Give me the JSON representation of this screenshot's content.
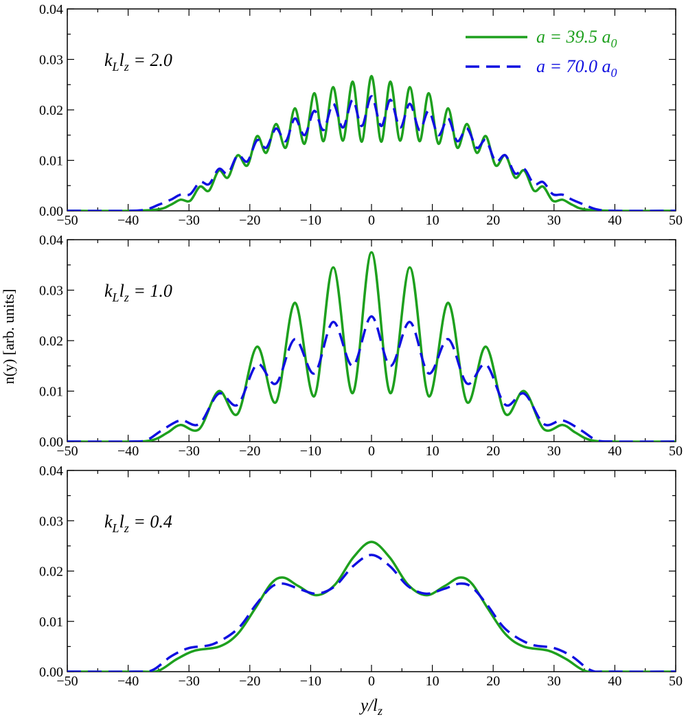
{
  "chart_data": {
    "type": "line",
    "ylabel": "n(y) [arb. units]",
    "xlabel": {
      "main": "y/l",
      "sub": "z"
    },
    "xlim": [
      -50,
      50
    ],
    "ylim": [
      0.0,
      0.04
    ],
    "xticks": [
      -50,
      -40,
      -30,
      -20,
      -10,
      0,
      10,
      20,
      30,
      40,
      50
    ],
    "xtick_labels": [
      "−50",
      "−40",
      "−30",
      "−20",
      "−10",
      "0",
      "10",
      "20",
      "30",
      "40",
      "50"
    ],
    "yticks": [
      0.0,
      0.01,
      0.02,
      0.03,
      0.04
    ],
    "ytick_labels": [
      "0.00",
      "0.01",
      "0.02",
      "0.03",
      "0.04"
    ],
    "legend": {
      "location": "top-right",
      "entries": [
        {
          "name": "a = 39.5 a",
          "sub": "0",
          "color": "#1ea01e",
          "style": "solid"
        },
        {
          "name": "a = 70.0 a",
          "sub": "0",
          "color": "#1010e0",
          "style": "dashed"
        }
      ]
    },
    "panels": [
      {
        "label": {
          "k": "k",
          "ksub": "L",
          "l": "l",
          "lsub": "z",
          "value": " = 2.0"
        },
        "series": [
          {
            "name": "a = 39.5 a0",
            "color": "#1ea01e",
            "style": "solid",
            "x": [
              -50,
              -40,
              -35,
              -33.0,
              -31.4,
              -29.8,
              -28.2,
              -26.7,
              -25.1,
              -23.6,
              -22.0,
              -20.4,
              -18.8,
              -17.3,
              -15.7,
              -14.1,
              -12.6,
              -11.0,
              -9.4,
              -7.9,
              -6.3,
              -4.7,
              -3.1,
              -1.6,
              0,
              1.6,
              3.1,
              4.7,
              6.3,
              7.9,
              9.4,
              11.0,
              12.6,
              14.1,
              15.7,
              17.3,
              18.8,
              20.4,
              22.0,
              23.6,
              25.1,
              26.7,
              28.2,
              29.8,
              31.4,
              33.0,
              35,
              40,
              50
            ],
            "y": [
              0,
              0,
              0.0003,
              0.0012,
              0.0022,
              0.002,
              0.0048,
              0.004,
              0.008,
              0.0066,
              0.011,
              0.009,
              0.0148,
              0.0115,
              0.0172,
              0.0125,
              0.0203,
              0.0133,
              0.0233,
              0.0138,
              0.0245,
              0.0139,
              0.0256,
              0.0137,
              0.0267,
              0.0137,
              0.0256,
              0.0139,
              0.0245,
              0.0138,
              0.0233,
              0.0133,
              0.0203,
              0.0125,
              0.0172,
              0.0115,
              0.0148,
              0.009,
              0.011,
              0.0066,
              0.008,
              0.004,
              0.0048,
              0.002,
              0.0022,
              0.0012,
              0.0003,
              0,
              0
            ]
          },
          {
            "name": "a = 70.0 a0",
            "color": "#1010e0",
            "style": "dashed",
            "x": [
              -50,
              -40,
              -37,
              -35,
              -33.0,
              -31.4,
              -29.8,
              -28.2,
              -26.7,
              -25.1,
              -23.6,
              -22.0,
              -20.4,
              -18.8,
              -17.3,
              -15.7,
              -14.1,
              -12.6,
              -11.0,
              -9.4,
              -7.9,
              -6.3,
              -4.7,
              -3.1,
              -1.6,
              0,
              1.6,
              3.1,
              4.7,
              6.3,
              7.9,
              9.4,
              11.0,
              12.6,
              14.1,
              15.7,
              17.3,
              18.8,
              20.4,
              22.0,
              23.6,
              25.1,
              26.7,
              28.2,
              29.8,
              31.4,
              33.0,
              35,
              37,
              40,
              50
            ],
            "y": [
              0,
              0,
              0.0003,
              0.0012,
              0.0022,
              0.0032,
              0.0033,
              0.0057,
              0.0053,
              0.0083,
              0.0074,
              0.011,
              0.0098,
              0.014,
              0.0125,
              0.0163,
              0.0138,
              0.0183,
              0.015,
              0.0198,
              0.016,
              0.0212,
              0.0165,
              0.022,
              0.0168,
              0.0227,
              0.0168,
              0.022,
              0.0165,
              0.0212,
              0.016,
              0.0198,
              0.015,
              0.0183,
              0.0138,
              0.0163,
              0.0125,
              0.014,
              0.0098,
              0.011,
              0.0074,
              0.0083,
              0.0053,
              0.0057,
              0.0033,
              0.0032,
              0.0022,
              0.0012,
              0.0003,
              0,
              0
            ]
          }
        ]
      },
      {
        "label": {
          "k": "k",
          "ksub": "L",
          "l": "l",
          "lsub": "z",
          "value": " = 1.0"
        },
        "series": [
          {
            "name": "a = 39.5 a0",
            "color": "#1ea01e",
            "style": "solid",
            "x": [
              -50,
              -40,
              -36,
              -33.5,
              -31.4,
              -28.3,
              -25.1,
              -22.0,
              -18.8,
              -15.7,
              -12.6,
              -9.4,
              -6.3,
              -3.1,
              0,
              3.1,
              6.3,
              9.4,
              12.6,
              15.7,
              18.8,
              22.0,
              25.1,
              28.3,
              31.4,
              33.5,
              36,
              40,
              50
            ],
            "y": [
              0,
              0,
              0.0003,
              0.0018,
              0.0033,
              0.0025,
              0.01,
              0.0055,
              0.0188,
              0.0078,
              0.0275,
              0.009,
              0.0345,
              0.0096,
              0.0375,
              0.0096,
              0.0345,
              0.009,
              0.0275,
              0.0078,
              0.0188,
              0.0055,
              0.01,
              0.0025,
              0.0033,
              0.0018,
              0.0003,
              0,
              0
            ]
          },
          {
            "name": "a = 70.0 a0",
            "color": "#1010e0",
            "style": "dashed",
            "x": [
              -50,
              -40,
              -37,
              -34.5,
              -31.4,
              -28.3,
              -25.1,
              -22.0,
              -18.8,
              -15.7,
              -12.6,
              -9.4,
              -6.3,
              -3.1,
              0,
              3.1,
              6.3,
              9.4,
              12.6,
              15.7,
              18.8,
              22.0,
              25.1,
              28.3,
              31.4,
              34.5,
              37,
              40,
              50
            ],
            "y": [
              0,
              0,
              0.0003,
              0.0022,
              0.0042,
              0.0035,
              0.0095,
              0.0073,
              0.0153,
              0.0115,
              0.0203,
              0.0135,
              0.0237,
              0.015,
              0.0248,
              0.015,
              0.0237,
              0.0135,
              0.0203,
              0.0115,
              0.0153,
              0.0073,
              0.0095,
              0.0035,
              0.0042,
              0.0022,
              0.0003,
              0,
              0
            ]
          }
        ]
      },
      {
        "label": {
          "k": "k",
          "ksub": "L",
          "l": "l",
          "lsub": "z",
          "value": " = 0.4"
        },
        "series": [
          {
            "name": "a = 39.5 a0",
            "color": "#1ea01e",
            "style": "solid",
            "x": [
              -50,
              -38,
              -35,
              -32,
              -29,
              -25,
              -22,
              -19,
              -16.5,
              -14.5,
              -12,
              -9,
              -6,
              -3,
              0,
              3,
              6,
              9,
              12,
              14.5,
              16.5,
              19,
              22,
              25,
              29,
              32,
              35,
              38,
              50
            ],
            "y": [
              0,
              0,
              0.0002,
              0.0025,
              0.0042,
              0.005,
              0.0075,
              0.0128,
              0.0175,
              0.0187,
              0.017,
              0.0152,
              0.0173,
              0.0227,
              0.0258,
              0.0227,
              0.0173,
              0.0152,
              0.017,
              0.0187,
              0.0175,
              0.0128,
              0.0075,
              0.005,
              0.0042,
              0.0025,
              0.0002,
              0,
              0
            ]
          },
          {
            "name": "a = 70.0 a0",
            "color": "#1010e0",
            "style": "dashed",
            "x": [
              -50,
              -39,
              -36,
              -33,
              -30,
              -26,
              -22,
              -19,
              -16.5,
              -14.5,
              -12,
              -9,
              -6,
              -3,
              0,
              3,
              6,
              9,
              12,
              14.5,
              16.5,
              19,
              22,
              26,
              30,
              33,
              36,
              39,
              50
            ],
            "y": [
              0,
              0,
              0.0003,
              0.003,
              0.0047,
              0.0055,
              0.0085,
              0.0133,
              0.0168,
              0.0175,
              0.0165,
              0.0155,
              0.017,
              0.021,
              0.0232,
              0.021,
              0.017,
              0.0155,
              0.0165,
              0.0175,
              0.0168,
              0.0133,
              0.0085,
              0.0055,
              0.0047,
              0.003,
              0.0003,
              0,
              0
            ]
          }
        ]
      }
    ]
  }
}
